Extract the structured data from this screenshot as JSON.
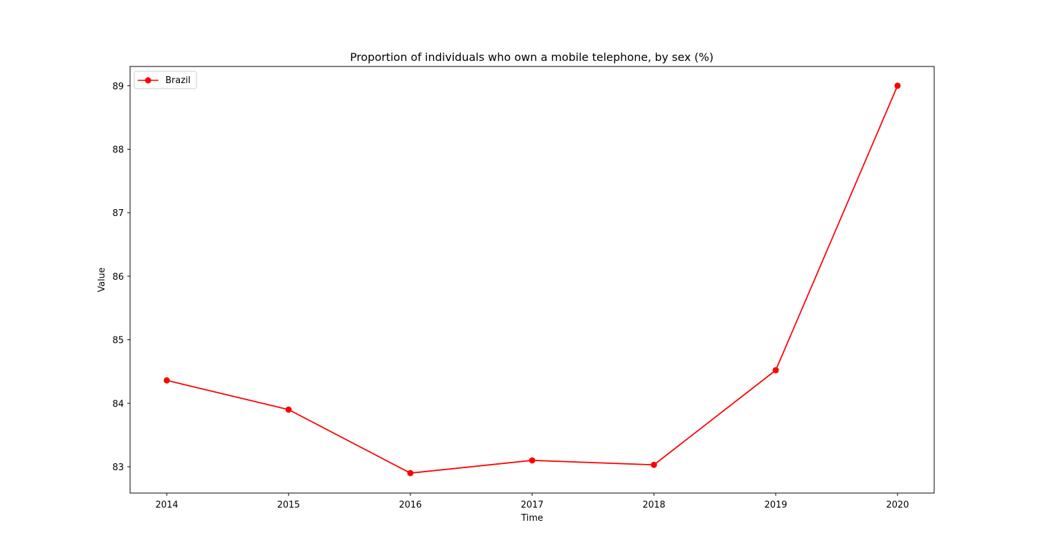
{
  "chart_data": {
    "type": "line",
    "title": "Proportion of individuals who own a mobile telephone, by sex (%)",
    "xlabel": "Time",
    "ylabel": "Value",
    "x": [
      "2014",
      "2015",
      "2016",
      "2017",
      "2018",
      "2019",
      "2020"
    ],
    "series": [
      {
        "name": "Brazil",
        "color": "#ff0000",
        "marker": "circle",
        "values": [
          84.36,
          83.9,
          82.9,
          83.1,
          83.03,
          84.52,
          89.0
        ]
      }
    ],
    "yticks": [
      83,
      84,
      85,
      86,
      87,
      88,
      89
    ],
    "ylim": [
      82.6,
      89.3
    ],
    "grid": false,
    "legend_position": "top-left"
  }
}
